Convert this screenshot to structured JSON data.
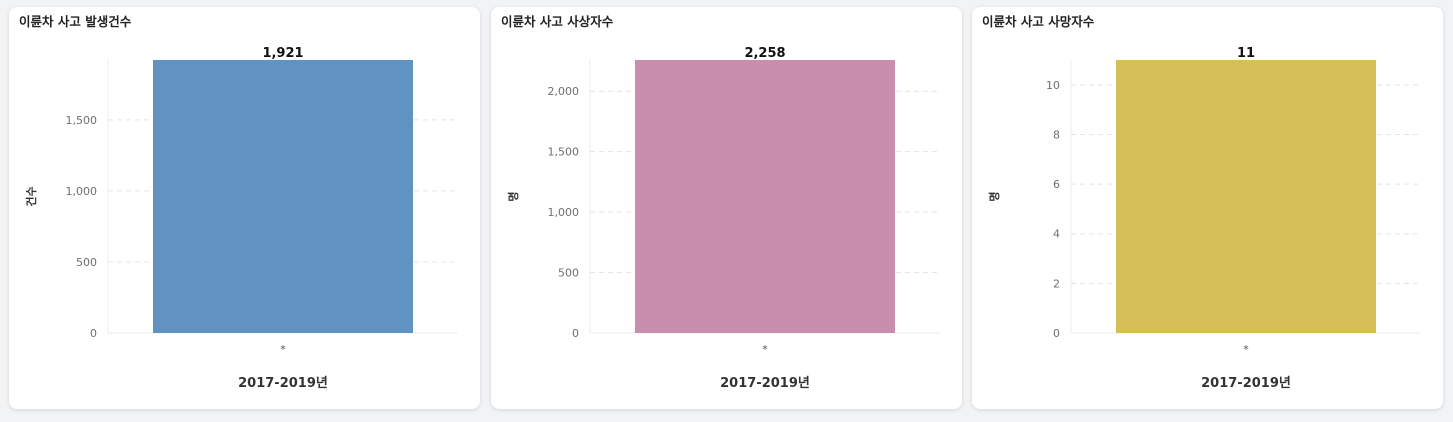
{
  "chart_data": [
    {
      "type": "bar",
      "title": "이륜차 사고 발생건수",
      "categories": [
        "*"
      ],
      "values": [
        1921
      ],
      "value_labels": [
        "1,921"
      ],
      "xlabel": "2017-2019년",
      "ylabel": "건수",
      "ylim": [
        0,
        1921
      ],
      "yticks": [
        0,
        500,
        1000,
        1500
      ],
      "ytick_labels": [
        "0",
        "500",
        "1,000",
        "1,500"
      ],
      "color": "#6193c2",
      "grid": true
    },
    {
      "type": "bar",
      "title": "이륜차 사고 사상자수",
      "categories": [
        "*"
      ],
      "values": [
        2258
      ],
      "value_labels": [
        "2,258"
      ],
      "xlabel": "2017-2019년",
      "ylabel": "명",
      "ylim": [
        0,
        2258
      ],
      "yticks": [
        0,
        500,
        1000,
        1500,
        2000
      ],
      "ytick_labels": [
        "0",
        "500",
        "1,000",
        "1,500",
        "2,000"
      ],
      "color": "#c98eae",
      "grid": true
    },
    {
      "type": "bar",
      "title": "이륜차 사고 사망자수",
      "categories": [
        "*"
      ],
      "values": [
        11
      ],
      "value_labels": [
        "11"
      ],
      "xlabel": "2017-2019년",
      "ylabel": "명",
      "ylim": [
        0,
        11
      ],
      "yticks": [
        0,
        2,
        4,
        6,
        8,
        10
      ],
      "ytick_labels": [
        "0",
        "2",
        "4",
        "6",
        "8",
        "10"
      ],
      "color": "#d5bf58",
      "grid": true
    }
  ]
}
